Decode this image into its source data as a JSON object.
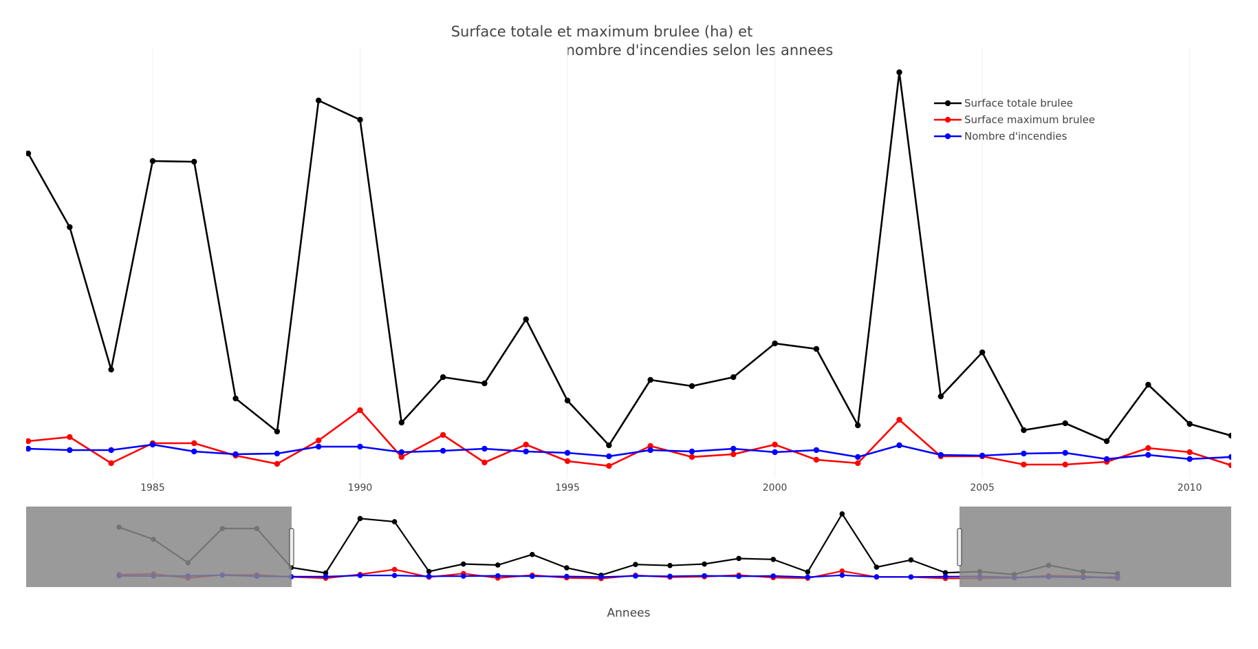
{
  "chart_data": {
    "type": "line",
    "title_lines": [
      "Surface totale et maximum brulee (ha) et",
      "nombre d'incendies selon les annees"
    ],
    "xlabel": "Annees",
    "ylabel": "",
    "x_tick_labels": [
      "1985",
      "1990",
      "1995",
      "2000",
      "2005",
      "2010"
    ],
    "x_ticks": [
      1985,
      1990,
      1995,
      2000,
      2005,
      2010
    ],
    "xlim": [
      1981.95,
      2011
    ],
    "ylim": [
      -1500,
      58000
    ],
    "x": [
      1982,
      1983,
      1984,
      1985,
      1986,
      1987,
      1988,
      1989,
      1990,
      1991,
      1992,
      1993,
      1994,
      1995,
      1996,
      1997,
      1998,
      1999,
      2000,
      2001,
      2002,
      2003,
      2004,
      2005,
      2006,
      2007,
      2008,
      2009,
      2010,
      2011
    ],
    "series": [
      {
        "name": "Surface totale brulee",
        "color": "#000000",
        "values": [
          45200,
          34500,
          13800,
          44100,
          44000,
          9600,
          4800,
          52900,
          50100,
          6100,
          12700,
          11800,
          21100,
          9300,
          2800,
          12300,
          11400,
          12700,
          17600,
          16800,
          5700,
          57000,
          9900,
          16300,
          5000,
          6000,
          3400,
          11600,
          5900,
          4200
        ]
      },
      {
        "name": "Surface maximum brulee",
        "color": "#ff0000",
        "values": [
          3400,
          4000,
          200,
          3100,
          3100,
          1300,
          100,
          3500,
          7900,
          1100,
          4300,
          300,
          2900,
          500,
          -200,
          2700,
          1100,
          1500,
          2900,
          700,
          200,
          6500,
          1200,
          1200,
          0,
          0,
          400,
          2400,
          1800,
          -100
        ]
      },
      {
        "name": "Nombre d'incendies",
        "color": "#0000ff",
        "values": [
          2300,
          2100,
          2100,
          2900,
          1900,
          1500,
          1600,
          2600,
          2600,
          1800,
          2000,
          2300,
          1900,
          1700,
          1200,
          2100,
          1900,
          2300,
          1800,
          2100,
          1100,
          2800,
          1400,
          1300,
          1600,
          1700,
          800,
          1400,
          800,
          1100
        ]
      }
    ],
    "legend_position": "top-right",
    "grid": {
      "x": true,
      "y": false
    },
    "rangeslider": {
      "visible": true,
      "selected_range": [
        1982,
        2011
      ]
    }
  }
}
